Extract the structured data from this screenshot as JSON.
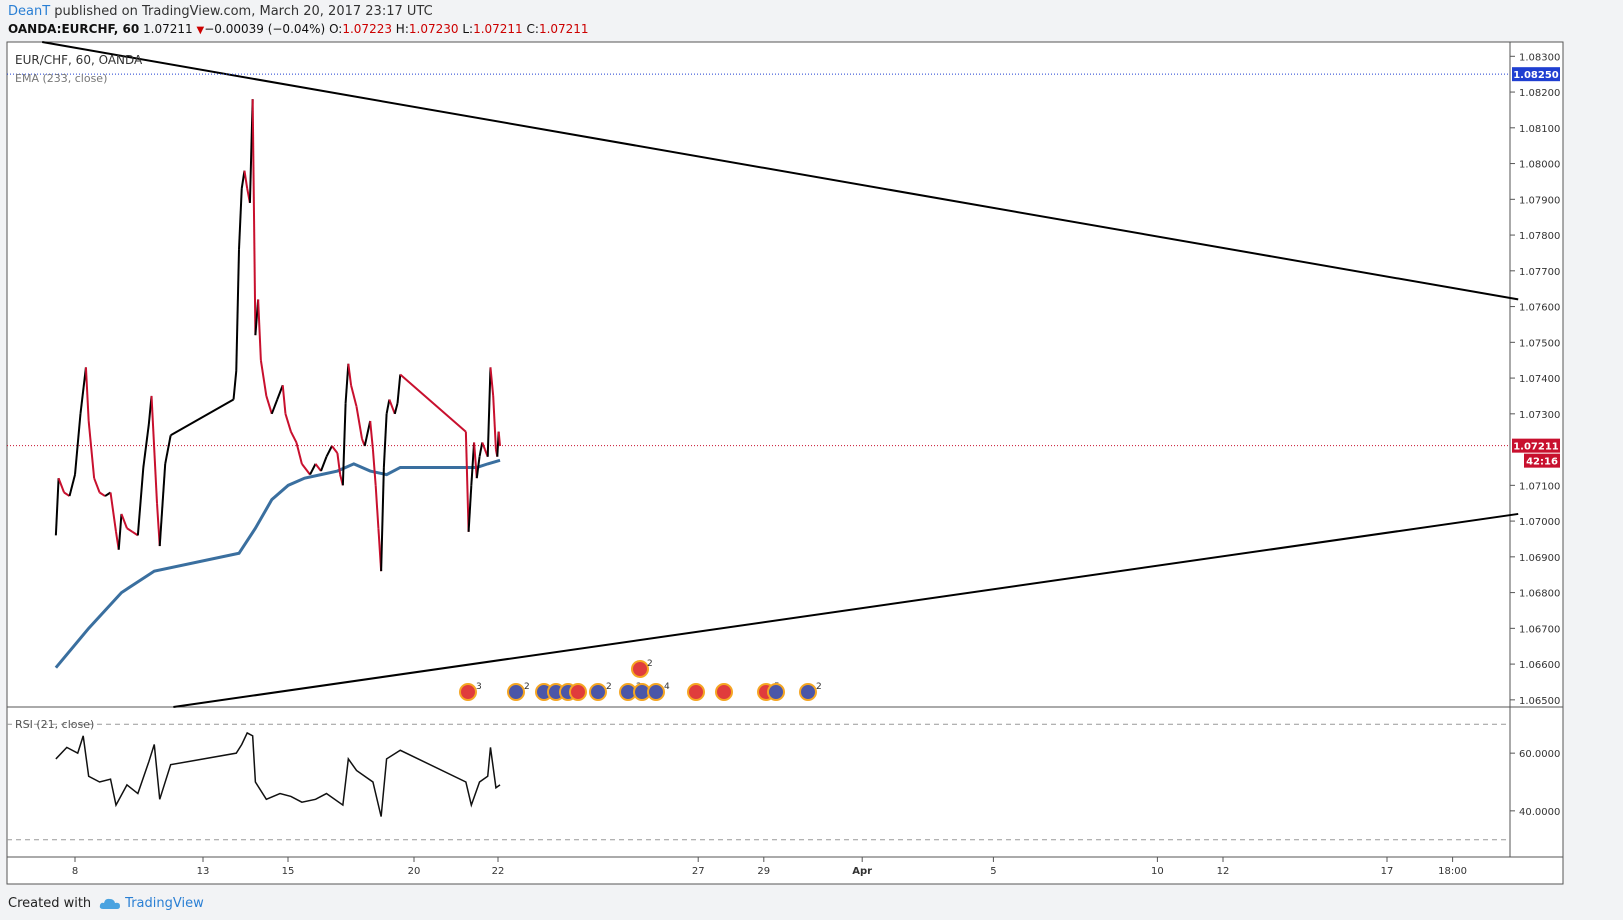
{
  "header": {
    "user": "DeanT",
    "published_text": " published on TradingView.com, March 20, 2017 23:17 UTC",
    "symbol": "OANDA:EURCHF, 60",
    "last": "1.07211",
    "change": "−0.00039 (−0.04%)",
    "o_label": "O:",
    "o_value": "1.07223",
    "h_label": "H:",
    "h_value": "1.07230",
    "l_label": "L:",
    "l_value": "1.07211",
    "c_label": "C:",
    "c_value": "1.07211"
  },
  "legend": {
    "main": "EUR/CHF, 60, OANDA",
    "ema": "EMA (233, close)",
    "rsi": "RSI (21, close)"
  },
  "footer": {
    "created_with": "Created with",
    "brand": "TradingView"
  },
  "colors": {
    "up": "#000000",
    "down": "#c8102e",
    "ema": "#3a6f9f",
    "trendline": "#000000",
    "price_marker": "#c8102e",
    "level_marker": "#1f3fd1",
    "accent": "#2a7fd4"
  },
  "chart_data": {
    "type": "line",
    "price_axis": {
      "ticks": [
        "1.08300",
        "1.08200",
        "1.08100",
        "1.08000",
        "1.07900",
        "1.07800",
        "1.07700",
        "1.07600",
        "1.07500",
        "1.07400",
        "1.07300",
        "1.07100",
        "1.07000",
        "1.06900",
        "1.06800",
        "1.06700",
        "1.06600",
        "1.06500"
      ],
      "range": [
        1.0648,
        1.0834
      ]
    },
    "current_price": "1.07211",
    "countdown": "42:16",
    "high_level": "1.08250",
    "time_axis": [
      "8",
      "13",
      "15",
      "20",
      "22",
      "27",
      "29",
      "Apr",
      "5",
      "10",
      "12",
      "17",
      "18:00"
    ],
    "rsi_axis": {
      "ticks": [
        "60.0000",
        "40.0000"
      ],
      "levels": [
        70,
        30
      ],
      "range": [
        24,
        76
      ]
    },
    "price_path": [
      [
        "Mar 7 10:00",
        1.0696
      ],
      [
        "Mar 7 12:00",
        1.0712
      ],
      [
        "Mar 7 16:00",
        1.0708
      ],
      [
        "Mar 7 20:00",
        1.0707
      ],
      [
        "Mar 8 00:00",
        1.0713
      ],
      [
        "Mar 8 04:00",
        1.073
      ],
      [
        "Mar 8 08:00",
        1.0743
      ],
      [
        "Mar 8 10:00",
        1.0728
      ],
      [
        "Mar 8 14:00",
        1.0712
      ],
      [
        "Mar 8 18:00",
        1.0708
      ],
      [
        "Mar 8 22:00",
        1.0707
      ],
      [
        "Mar 9 02:00",
        1.0708
      ],
      [
        "Mar 9 06:00",
        1.0697
      ],
      [
        "Mar 9 08:00",
        1.0692
      ],
      [
        "Mar 9 10:00",
        1.0702
      ],
      [
        "Mar 9 14:00",
        1.0698
      ],
      [
        "Mar 9 18:00",
        1.0697
      ],
      [
        "Mar 9 22:00",
        1.0696
      ],
      [
        "Mar 10 02:00",
        1.0715
      ],
      [
        "Mar 10 06:00",
        1.0727
      ],
      [
        "Mar 10 08:00",
        1.0735
      ],
      [
        "Mar 10 12:00",
        1.0705
      ],
      [
        "Mar 10 14:00",
        1.0693
      ],
      [
        "Mar 10 18:00",
        1.0716
      ],
      [
        "Mar 10 22:00",
        1.0724
      ],
      [
        "Mar 12 20:00",
        1.0734
      ],
      [
        "Mar 12 22:00",
        1.0742
      ],
      [
        "Mar 13 00:00",
        1.0776
      ],
      [
        "Mar 13 02:00",
        1.0793
      ],
      [
        "Mar 13 04:00",
        1.0798
      ],
      [
        "Mar 13 06:00",
        1.0793
      ],
      [
        "Mar 13 08:00",
        1.0789
      ],
      [
        "Mar 13 10:00",
        1.0818
      ],
      [
        "Mar 13 12:00",
        1.0752
      ],
      [
        "Mar 13 14:00",
        1.0762
      ],
      [
        "Mar 13 16:00",
        1.0745
      ],
      [
        "Mar 13 20:00",
        1.0735
      ],
      [
        "Mar 14 00:00",
        1.073
      ],
      [
        "Mar 14 04:00",
        1.0734
      ],
      [
        "Mar 14 08:00",
        1.0738
      ],
      [
        "Mar 14 10:00",
        1.073
      ],
      [
        "Mar 14 14:00",
        1.0725
      ],
      [
        "Mar 14 18:00",
        1.0722
      ],
      [
        "Mar 14 22:00",
        1.0716
      ],
      [
        "Mar 15 04:00",
        1.0713
      ],
      [
        "Mar 15 08:00",
        1.0716
      ],
      [
        "Mar 15 12:00",
        1.0714
      ],
      [
        "Mar 15 16:00",
        1.0718
      ],
      [
        "Mar 15 20:00",
        1.0721
      ],
      [
        "Mar 16 00:00",
        1.0719
      ],
      [
        "Mar 16 02:00",
        1.0713
      ],
      [
        "Mar 16 04:00",
        1.071
      ],
      [
        "Mar 16 06:00",
        1.0733
      ],
      [
        "Mar 16 08:00",
        1.0744
      ],
      [
        "Mar 16 10:00",
        1.0738
      ],
      [
        "Mar 16 14:00",
        1.0732
      ],
      [
        "Mar 16 18:00",
        1.0723
      ],
      [
        "Mar 16 20:00",
        1.0721
      ],
      [
        "Mar 17 00:00",
        1.0728
      ],
      [
        "Mar 17 02:00",
        1.072
      ],
      [
        "Mar 17 04:00",
        1.071
      ],
      [
        "Mar 17 06:00",
        1.0698
      ],
      [
        "Mar 17 08:00",
        1.0686
      ],
      [
        "Mar 17 10:00",
        1.0715
      ],
      [
        "Mar 17 12:00",
        1.073
      ],
      [
        "Mar 17 14:00",
        1.0734
      ],
      [
        "Mar 17 18:00",
        1.073
      ],
      [
        "Mar 17 20:00",
        1.0733
      ],
      [
        "Mar 17 22:00",
        1.0741
      ],
      [
        "Mar 19 22:00",
        1.0725
      ],
      [
        "Mar 20 00:00",
        1.0697
      ],
      [
        "Mar 20 02:00",
        1.071
      ],
      [
        "Mar 20 04:00",
        1.0722
      ],
      [
        "Mar 20 06:00",
        1.0712
      ],
      [
        "Mar 20 08:00",
        1.0718
      ],
      [
        "Mar 20 10:00",
        1.0722
      ],
      [
        "Mar 20 12:00",
        1.072
      ],
      [
        "Mar 20 14:00",
        1.0718
      ],
      [
        "Mar 20 16:00",
        1.0743
      ],
      [
        "Mar 20 18:00",
        1.0735
      ],
      [
        "Mar 20 20:00",
        1.072
      ],
      [
        "Mar 20 21:00",
        1.0718
      ],
      [
        "Mar 20 22:00",
        1.0725
      ],
      [
        "Mar 20 23:00",
        1.0721
      ]
    ],
    "ema_path": [
      [
        "Mar 7 10:00",
        1.0659
      ],
      [
        "Mar 8 10:00",
        1.067
      ],
      [
        "Mar 9 10:00",
        1.068
      ],
      [
        "Mar 10 10:00",
        1.0686
      ],
      [
        "Mar 13 00:00",
        1.0691
      ],
      [
        "Mar 13 12:00",
        1.0698
      ],
      [
        "Mar 14 00:00",
        1.0706
      ],
      [
        "Mar 14 12:00",
        1.071
      ],
      [
        "Mar 15 00:00",
        1.0712
      ],
      [
        "Mar 15 12:00",
        1.0713
      ],
      [
        "Mar 16 00:00",
        1.0714
      ],
      [
        "Mar 16 12:00",
        1.0716
      ],
      [
        "Mar 17 00:00",
        1.0714
      ],
      [
        "Mar 17 12:00",
        1.0713
      ],
      [
        "Mar 17 22:00",
        1.0715
      ],
      [
        "Mar 20 06:00",
        1.0715
      ],
      [
        "Mar 20 14:00",
        1.0716
      ],
      [
        "Mar 20 23:00",
        1.0717
      ]
    ],
    "rsi_path": [
      [
        "Mar 7 10:00",
        58
      ],
      [
        "Mar 7 18:00",
        62
      ],
      [
        "Mar 8 02:00",
        60
      ],
      [
        "Mar 8 06:00",
        66
      ],
      [
        "Mar 8 10:00",
        52
      ],
      [
        "Mar 8 18:00",
        50
      ],
      [
        "Mar 9 02:00",
        51
      ],
      [
        "Mar 9 06:00",
        42
      ],
      [
        "Mar 9 14:00",
        49
      ],
      [
        "Mar 9 22:00",
        46
      ],
      [
        "Mar 10 06:00",
        57
      ],
      [
        "Mar 10 10:00",
        63
      ],
      [
        "Mar 10 14:00",
        44
      ],
      [
        "Mar 10 22:00",
        56
      ],
      [
        "Mar 12 22:00",
        60
      ],
      [
        "Mar 13 02:00",
        63
      ],
      [
        "Mar 13 06:00",
        67
      ],
      [
        "Mar 13 10:00",
        66
      ],
      [
        "Mar 13 12:00",
        50
      ],
      [
        "Mar 13 20:00",
        44
      ],
      [
        "Mar 14 06:00",
        46
      ],
      [
        "Mar 14 14:00",
        45
      ],
      [
        "Mar 14 22:00",
        43
      ],
      [
        "Mar 15 08:00",
        44
      ],
      [
        "Mar 15 16:00",
        46
      ],
      [
        "Mar 16 04:00",
        42
      ],
      [
        "Mar 16 08:00",
        58
      ],
      [
        "Mar 16 14:00",
        54
      ],
      [
        "Mar 16 20:00",
        52
      ],
      [
        "Mar 17 02:00",
        50
      ],
      [
        "Mar 17 08:00",
        38
      ],
      [
        "Mar 17 12:00",
        58
      ],
      [
        "Mar 17 22:00",
        61
      ],
      [
        "Mar 19 22:00",
        50
      ],
      [
        "Mar 20 02:00",
        42
      ],
      [
        "Mar 20 08:00",
        50
      ],
      [
        "Mar 20 14:00",
        52
      ],
      [
        "Mar 20 16:00",
        62
      ],
      [
        "Mar 20 20:00",
        48
      ],
      [
        "Mar 20 23:00",
        49
      ]
    ],
    "trendlines": [
      {
        "from": [
          "Mar 7 00:00",
          1.0834
        ],
        "to": [
          "Apr 21 00:00",
          1.0762
        ]
      },
      {
        "from": [
          "Mar 11 00:00",
          1.0648
        ],
        "to": [
          "Apr 21 00:00",
          1.0702
        ]
      }
    ],
    "events": {
      "lower_row_counts": [
        "3",
        "2",
        "2",
        "2",
        "2",
        "4",
        "5",
        "2"
      ],
      "upper_row_counts": [
        "2"
      ]
    }
  }
}
